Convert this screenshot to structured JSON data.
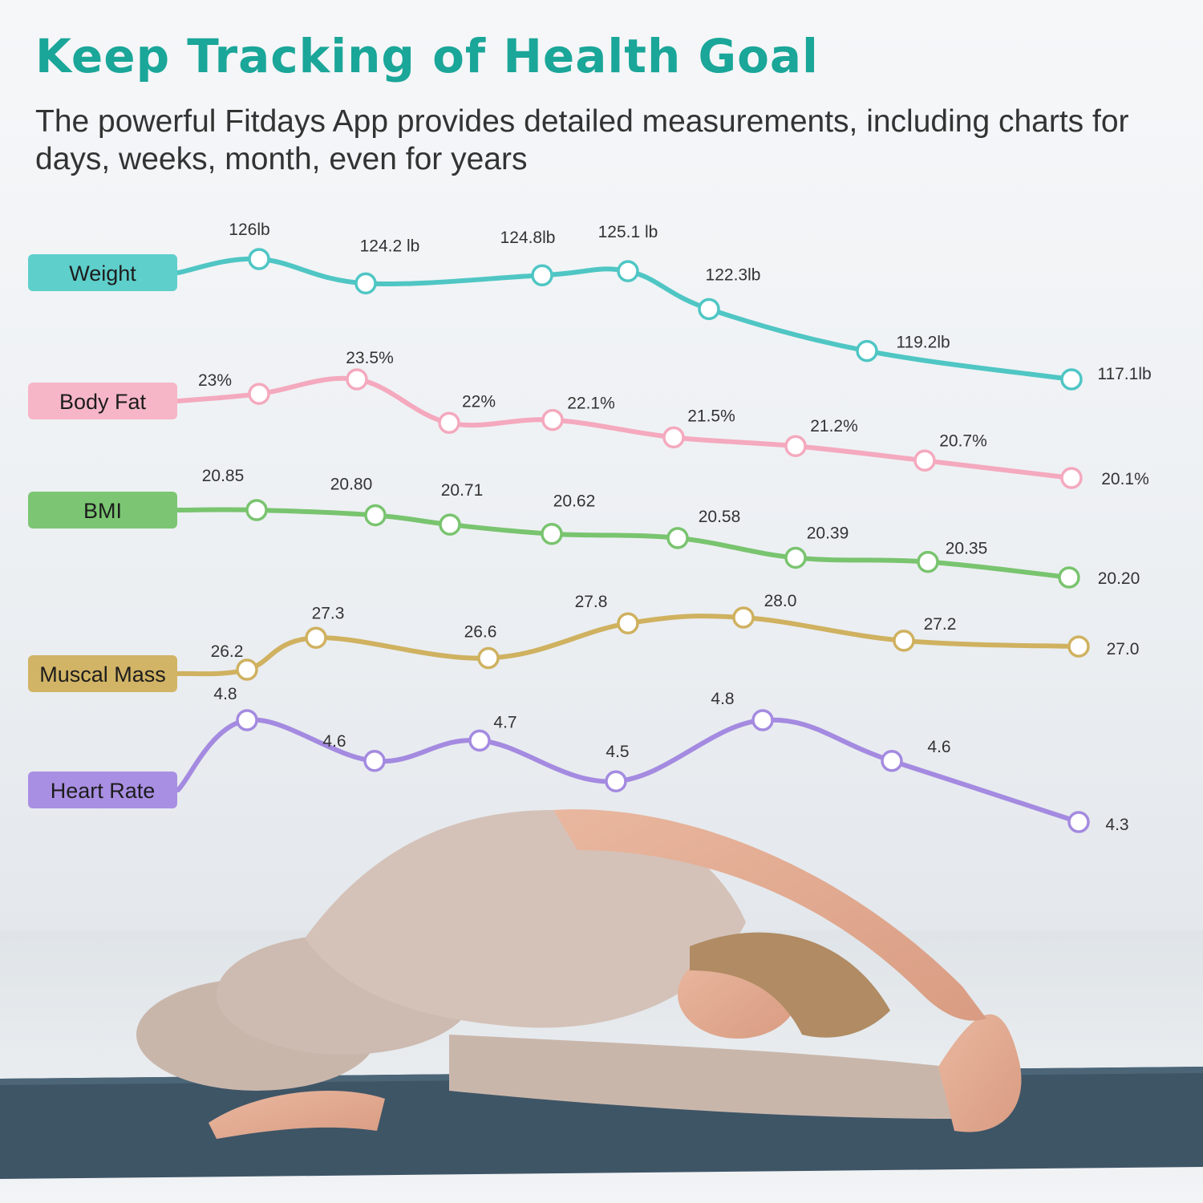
{
  "header": {
    "title": "Keep Tracking of Health Goal",
    "subtitle": "The powerful Fitdays App provides detailed measurements, including charts for days, weeks, month, even for years"
  },
  "chart_data": [
    {
      "type": "line",
      "name": "Weight",
      "color": "#4fc6c4",
      "pill_color": "#5ecfcb",
      "values": [
        126,
        124.2,
        124.8,
        125.1,
        122.3,
        119.2,
        117.1
      ],
      "labels": [
        "126lb",
        "124.2 lb",
        "124.8lb",
        "125.1 lb",
        "122.3lb",
        "119.2lb",
        "117.1lb"
      ]
    },
    {
      "type": "line",
      "name": "Body Fat",
      "color": "#f4a9be",
      "pill_color": "#f7b6c8",
      "values": [
        23,
        23.5,
        22,
        22.1,
        21.5,
        21.2,
        20.7,
        20.1
      ],
      "labels": [
        "23%",
        "23.5%",
        "22%",
        "22.1%",
        "21.5%",
        "21.2%",
        "20.7%",
        "20.1%"
      ]
    },
    {
      "type": "line",
      "name": "BMI",
      "color": "#79c46f",
      "pill_color": "#7cc673",
      "values": [
        20.85,
        20.8,
        20.71,
        20.62,
        20.58,
        20.39,
        20.35,
        20.2
      ],
      "labels": [
        "20.85",
        "20.80",
        "20.71",
        "20.62",
        "20.58",
        "20.39",
        "20.35",
        "20.20"
      ]
    },
    {
      "type": "line",
      "name": "Muscal Mass",
      "color": "#cfb160",
      "pill_color": "#d2b466",
      "values": [
        26.2,
        27.3,
        26.6,
        27.8,
        28.0,
        27.2,
        27.0
      ],
      "labels": [
        "26.2",
        "27.3",
        "26.6",
        "27.8",
        "28.0",
        "27.2",
        "27.0"
      ]
    },
    {
      "type": "line",
      "name": "Heart Rate",
      "color": "#a48ae0",
      "pill_color": "#a98fe3",
      "values": [
        4.8,
        4.6,
        4.7,
        4.5,
        4.8,
        4.6,
        4.3
      ],
      "labels": [
        "4.8",
        "4.6",
        "4.7",
        "4.5",
        "4.8",
        "4.6",
        "4.3"
      ]
    }
  ],
  "photo": {
    "description_icon": "yoga-stretch-photo"
  }
}
